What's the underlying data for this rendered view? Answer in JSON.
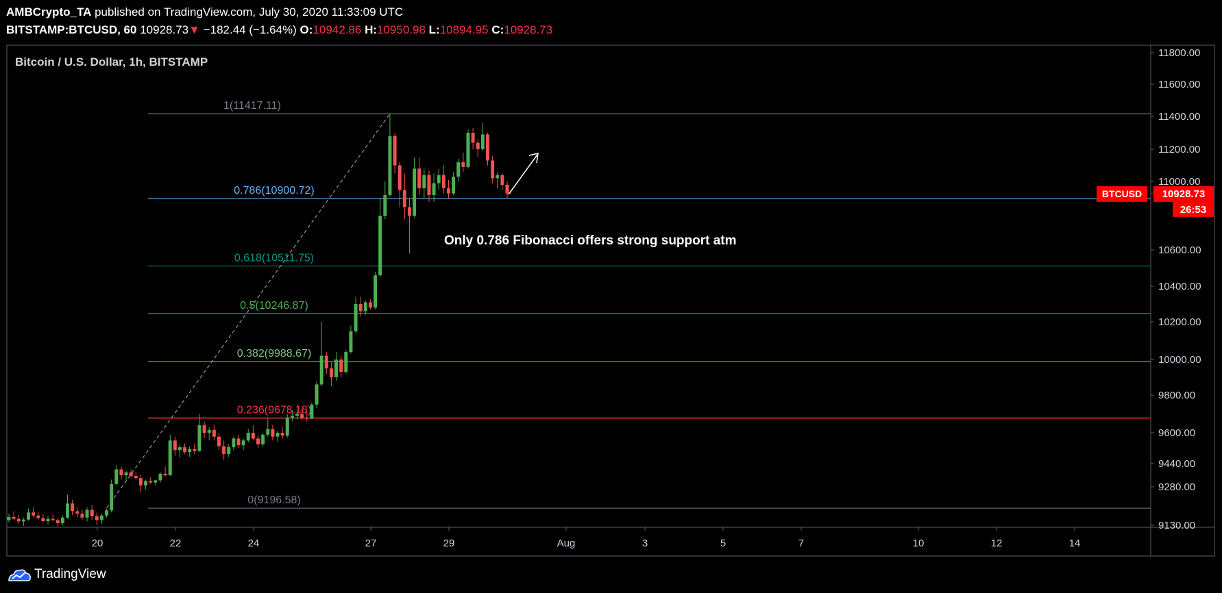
{
  "header": {
    "author": "AMBCrypto_TA",
    "published_text": "published on TradingView.com, July 30, 2020 11:33:09 UTC",
    "symbol": "BITSTAMP:BTCUSD, 60",
    "last": "10928.73",
    "change": "−182.44 (−1.64%)",
    "open_label": "O:",
    "open": "10942.86",
    "high_label": "H:",
    "high": "10950.98",
    "low_label": "L:",
    "low": "10894.95",
    "close_label": "C:",
    "close": "10928.73"
  },
  "footer": {
    "brand": "TradingView"
  },
  "colors": {
    "up": "#26a69a",
    "down": "#ef5350",
    "badge": "#ff0000",
    "background": "#000000"
  },
  "chart_data": {
    "type": "candlestick",
    "title": "Bitcoin / U.S. Dollar, 1h, BITSTAMP",
    "x_tick_labels": [
      "20",
      "22",
      "24",
      "27",
      "29",
      "Aug",
      "3",
      "5",
      "7",
      "10",
      "12",
      "14"
    ],
    "y_tick_labels": [
      "11800.00",
      "11600.00",
      "11400.00",
      "11200.00",
      "11000.00",
      "10600.00",
      "10400.00",
      "10200.00",
      "10000.00",
      "9800.00",
      "9600.00",
      "9440.00",
      "9280.00",
      "9130.00"
    ],
    "y_ticks": [
      11800,
      11600,
      11400,
      11200,
      11000,
      10600,
      10400,
      10200,
      10000,
      9800,
      9600,
      9440,
      9280,
      9130
    ],
    "price_badge": {
      "symbol": "BTCUSD",
      "price": "10928.73",
      "price_value": 10928.73,
      "countdown": "26:53"
    },
    "fib_levels": [
      {
        "label": "1(11417.11)",
        "level": 1,
        "price": 11417.11,
        "color": "#787b86"
      },
      {
        "label": "0.786(10900.72)",
        "level": 0.786,
        "price": 10900.72,
        "color": "#64b5f6"
      },
      {
        "label": "0.618(10511.75)",
        "level": 0.618,
        "price": 10511.75,
        "color": "#009688"
      },
      {
        "label": "0.5(10246.87)",
        "level": 0.5,
        "price": 10246.87,
        "color": "#4caf50"
      },
      {
        "label": "0.382(9988.67)",
        "level": 0.382,
        "price": 9988.67,
        "color": "#81c784"
      },
      {
        "label": "0.236(9678.18)",
        "level": 0.236,
        "price": 9678.18,
        "color": "#f23645"
      },
      {
        "label": "0(9196.58)",
        "level": 0,
        "price": 9196.58,
        "color": "#787b86"
      }
    ],
    "annotation": "Only 0.786 Fibonacci offers strong support atm",
    "candles": [
      {
        "o": 9150,
        "h": 9175,
        "l": 9140,
        "c": 9162
      },
      {
        "o": 9162,
        "h": 9185,
        "l": 9150,
        "c": 9155
      },
      {
        "o": 9155,
        "h": 9170,
        "l": 9135,
        "c": 9145
      },
      {
        "o": 9145,
        "h": 9160,
        "l": 9128,
        "c": 9152
      },
      {
        "o": 9152,
        "h": 9195,
        "l": 9148,
        "c": 9180
      },
      {
        "o": 9180,
        "h": 9200,
        "l": 9160,
        "c": 9168
      },
      {
        "o": 9168,
        "h": 9182,
        "l": 9150,
        "c": 9158
      },
      {
        "o": 9158,
        "h": 9175,
        "l": 9140,
        "c": 9146
      },
      {
        "o": 9146,
        "h": 9165,
        "l": 9132,
        "c": 9155
      },
      {
        "o": 9155,
        "h": 9172,
        "l": 9145,
        "c": 9150
      },
      {
        "o": 9150,
        "h": 9160,
        "l": 9125,
        "c": 9138
      },
      {
        "o": 9138,
        "h": 9168,
        "l": 9130,
        "c": 9160
      },
      {
        "o": 9160,
        "h": 9250,
        "l": 9155,
        "c": 9215
      },
      {
        "o": 9215,
        "h": 9230,
        "l": 9170,
        "c": 9185
      },
      {
        "o": 9185,
        "h": 9200,
        "l": 9160,
        "c": 9175
      },
      {
        "o": 9175,
        "h": 9190,
        "l": 9150,
        "c": 9160
      },
      {
        "o": 9160,
        "h": 9200,
        "l": 9145,
        "c": 9190
      },
      {
        "o": 9190,
        "h": 9210,
        "l": 9150,
        "c": 9165
      },
      {
        "o": 9165,
        "h": 9180,
        "l": 9130,
        "c": 9150
      },
      {
        "o": 9150,
        "h": 9175,
        "l": 9135,
        "c": 9168
      },
      {
        "o": 9168,
        "h": 9195,
        "l": 9160,
        "c": 9188
      },
      {
        "o": 9188,
        "h": 9330,
        "l": 9180,
        "c": 9300
      },
      {
        "o": 9300,
        "h": 9430,
        "l": 9290,
        "c": 9400
      },
      {
        "o": 9400,
        "h": 9420,
        "l": 9330,
        "c": 9360
      },
      {
        "o": 9360,
        "h": 9390,
        "l": 9320,
        "c": 9380
      },
      {
        "o": 9380,
        "h": 9400,
        "l": 9345,
        "c": 9355
      },
      {
        "o": 9355,
        "h": 9380,
        "l": 9330,
        "c": 9340
      },
      {
        "o": 9340,
        "h": 9360,
        "l": 9260,
        "c": 9290
      },
      {
        "o": 9290,
        "h": 9330,
        "l": 9270,
        "c": 9320
      },
      {
        "o": 9320,
        "h": 9345,
        "l": 9300,
        "c": 9310
      },
      {
        "o": 9310,
        "h": 9330,
        "l": 9290,
        "c": 9325
      },
      {
        "o": 9325,
        "h": 9380,
        "l": 9310,
        "c": 9370
      },
      {
        "o": 9370,
        "h": 9420,
        "l": 9350,
        "c": 9360
      },
      {
        "o": 9360,
        "h": 9590,
        "l": 9355,
        "c": 9560
      },
      {
        "o": 9560,
        "h": 9580,
        "l": 9480,
        "c": 9510
      },
      {
        "o": 9510,
        "h": 9540,
        "l": 9470,
        "c": 9525
      },
      {
        "o": 9525,
        "h": 9545,
        "l": 9490,
        "c": 9500
      },
      {
        "o": 9500,
        "h": 9530,
        "l": 9475,
        "c": 9515
      },
      {
        "o": 9515,
        "h": 9545,
        "l": 9490,
        "c": 9505
      },
      {
        "o": 9505,
        "h": 9700,
        "l": 9500,
        "c": 9640
      },
      {
        "o": 9640,
        "h": 9660,
        "l": 9570,
        "c": 9600
      },
      {
        "o": 9600,
        "h": 9630,
        "l": 9560,
        "c": 9615
      },
      {
        "o": 9615,
        "h": 9640,
        "l": 9560,
        "c": 9580
      },
      {
        "o": 9580,
        "h": 9600,
        "l": 9510,
        "c": 9530
      },
      {
        "o": 9530,
        "h": 9560,
        "l": 9460,
        "c": 9490
      },
      {
        "o": 9490,
        "h": 9540,
        "l": 9475,
        "c": 9525
      },
      {
        "o": 9525,
        "h": 9580,
        "l": 9510,
        "c": 9570
      },
      {
        "o": 9570,
        "h": 9590,
        "l": 9520,
        "c": 9535
      },
      {
        "o": 9535,
        "h": 9570,
        "l": 9510,
        "c": 9560
      },
      {
        "o": 9560,
        "h": 9620,
        "l": 9550,
        "c": 9600
      },
      {
        "o": 9600,
        "h": 9640,
        "l": 9560,
        "c": 9570
      },
      {
        "o": 9570,
        "h": 9590,
        "l": 9520,
        "c": 9540
      },
      {
        "o": 9540,
        "h": 9600,
        "l": 9530,
        "c": 9590
      },
      {
        "o": 9590,
        "h": 9680,
        "l": 9580,
        "c": 9620
      },
      {
        "o": 9620,
        "h": 9640,
        "l": 9560,
        "c": 9580
      },
      {
        "o": 9580,
        "h": 9610,
        "l": 9555,
        "c": 9600
      },
      {
        "o": 9600,
        "h": 9630,
        "l": 9570,
        "c": 9585
      },
      {
        "o": 9585,
        "h": 9700,
        "l": 9575,
        "c": 9680
      },
      {
        "o": 9680,
        "h": 9720,
        "l": 9660,
        "c": 9690
      },
      {
        "o": 9690,
        "h": 9750,
        "l": 9670,
        "c": 9700
      },
      {
        "o": 9700,
        "h": 9730,
        "l": 9665,
        "c": 9680
      },
      {
        "o": 9680,
        "h": 9710,
        "l": 9660,
        "c": 9675
      },
      {
        "o": 9675,
        "h": 9760,
        "l": 9670,
        "c": 9750
      },
      {
        "o": 9750,
        "h": 9880,
        "l": 9730,
        "c": 9860
      },
      {
        "o": 9860,
        "h": 10200,
        "l": 9850,
        "c": 10020
      },
      {
        "o": 10020,
        "h": 10040,
        "l": 9920,
        "c": 9950
      },
      {
        "o": 9950,
        "h": 9990,
        "l": 9850,
        "c": 9900
      },
      {
        "o": 9900,
        "h": 10040,
        "l": 9880,
        "c": 10000
      },
      {
        "o": 10000,
        "h": 10020,
        "l": 9900,
        "c": 9930
      },
      {
        "o": 9930,
        "h": 10050,
        "l": 9920,
        "c": 10040
      },
      {
        "o": 10040,
        "h": 10180,
        "l": 10030,
        "c": 10150
      },
      {
        "o": 10150,
        "h": 10340,
        "l": 10140,
        "c": 10300
      },
      {
        "o": 10300,
        "h": 10340,
        "l": 10230,
        "c": 10260
      },
      {
        "o": 10260,
        "h": 10320,
        "l": 10240,
        "c": 10310
      },
      {
        "o": 10310,
        "h": 10330,
        "l": 10270,
        "c": 10280
      },
      {
        "o": 10280,
        "h": 10480,
        "l": 10270,
        "c": 10460
      },
      {
        "o": 10460,
        "h": 10900,
        "l": 10450,
        "c": 10800
      },
      {
        "o": 10800,
        "h": 11000,
        "l": 10780,
        "c": 10920
      },
      {
        "o": 10920,
        "h": 11417,
        "l": 10910,
        "c": 11280
      },
      {
        "o": 11280,
        "h": 11300,
        "l": 11050,
        "c": 11100
      },
      {
        "o": 11100,
        "h": 11120,
        "l": 10850,
        "c": 10950
      },
      {
        "o": 10950,
        "h": 11050,
        "l": 10780,
        "c": 10850
      },
      {
        "o": 10850,
        "h": 10900,
        "l": 10580,
        "c": 10800
      },
      {
        "o": 10800,
        "h": 11150,
        "l": 10790,
        "c": 11080
      },
      {
        "o": 11080,
        "h": 11150,
        "l": 10920,
        "c": 10960
      },
      {
        "o": 10960,
        "h": 11080,
        "l": 10900,
        "c": 11040
      },
      {
        "o": 11040,
        "h": 11070,
        "l": 10880,
        "c": 10920
      },
      {
        "o": 10920,
        "h": 11050,
        "l": 10880,
        "c": 10990
      },
      {
        "o": 10990,
        "h": 11080,
        "l": 10950,
        "c": 11040
      },
      {
        "o": 11040,
        "h": 11100,
        "l": 10930,
        "c": 10960
      },
      {
        "o": 10960,
        "h": 11010,
        "l": 10900,
        "c": 10930
      },
      {
        "o": 10930,
        "h": 11060,
        "l": 10920,
        "c": 11030
      },
      {
        "o": 11030,
        "h": 11140,
        "l": 11000,
        "c": 11120
      },
      {
        "o": 11120,
        "h": 11180,
        "l": 11060,
        "c": 11090
      },
      {
        "o": 11090,
        "h": 11320,
        "l": 11080,
        "c": 11300
      },
      {
        "o": 11300,
        "h": 11330,
        "l": 11200,
        "c": 11240
      },
      {
        "o": 11240,
        "h": 11260,
        "l": 11150,
        "c": 11200
      },
      {
        "o": 11200,
        "h": 11360,
        "l": 11190,
        "c": 11290
      },
      {
        "o": 11290,
        "h": 11300,
        "l": 11100,
        "c": 11130
      },
      {
        "o": 11130,
        "h": 11160,
        "l": 10990,
        "c": 11020
      },
      {
        "o": 11020,
        "h": 11060,
        "l": 10960,
        "c": 11040
      },
      {
        "o": 11040,
        "h": 11050,
        "l": 10950,
        "c": 10980
      },
      {
        "o": 10980,
        "h": 11000,
        "l": 10900,
        "c": 10930
      }
    ]
  }
}
